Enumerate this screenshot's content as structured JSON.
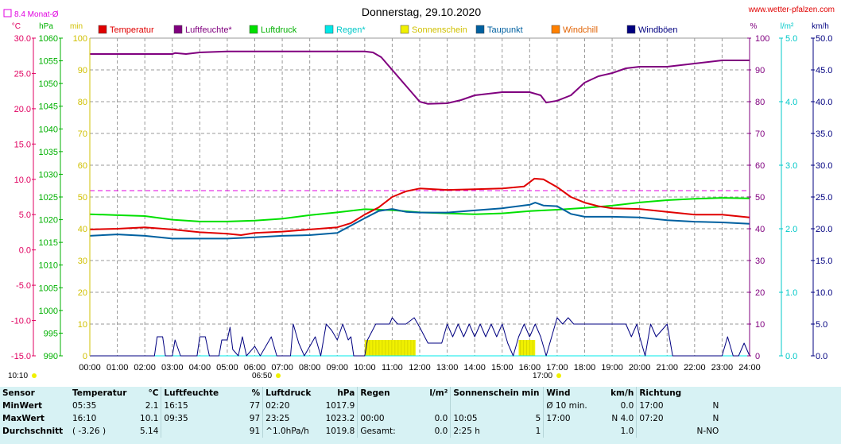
{
  "header": {
    "title": "Donnerstag, 29.10.2020",
    "site": "www.wetter-pfalzen.com",
    "month_avg_label": "8.4 Monat-Ø"
  },
  "axis_units": {
    "temp": "°C",
    "pressure": "hPa",
    "sun": "min",
    "humidity": "%",
    "rain": "l/m²",
    "wind": "km/h"
  },
  "legend": [
    {
      "name": "Temperatur",
      "color": "#e00000",
      "text_color": "#e00000"
    },
    {
      "name": "Luftfeuchte*",
      "color": "#80007f",
      "text_color": "#80007f"
    },
    {
      "name": "Luftdruck",
      "color": "#00e000",
      "text_color": "#00b000"
    },
    {
      "name": "Regen*",
      "color": "#00e8e8",
      "text_color": "#00c8c8"
    },
    {
      "name": "Sonnenschein",
      "color": "#f0f000",
      "text_color": "#d0c000"
    },
    {
      "name": "Taupunkt",
      "color": "#0060a0",
      "text_color": "#0060a0"
    },
    {
      "name": "Windchill",
      "color": "#ff8000",
      "text_color": "#e06000"
    },
    {
      "name": "Windböen",
      "color": "#000080",
      "text_color": "#000080"
    }
  ],
  "x_marks": {
    "time_start": "10:10",
    "sunrise": "06:50",
    "sunset": "17:00"
  },
  "chart_data": {
    "type": "line",
    "title": "Donnerstag, 29.10.2020",
    "x_unit": "hours",
    "xlim": [
      0,
      24
    ],
    "x_ticks": [
      "00:00",
      "01:00",
      "02:00",
      "03:00",
      "04:00",
      "05:00",
      "06:00",
      "07:00",
      "08:00",
      "09:00",
      "10:00",
      "11:00",
      "12:00",
      "13:00",
      "14:00",
      "15:00",
      "16:00",
      "17:00",
      "18:00",
      "19:00",
      "20:00",
      "21:00",
      "22:00",
      "23:00",
      "24:00"
    ],
    "axes": {
      "temp": {
        "label": "°C",
        "lim": [
          -15,
          30
        ],
        "ticks": [
          "30.0",
          "25.0",
          "20.0",
          "15.0",
          "10.0",
          "5.0",
          "0.0",
          "-5.0",
          "-10.0",
          "-15.0"
        ]
      },
      "pressure": {
        "label": "hPa",
        "lim": [
          990,
          1060
        ],
        "ticks": [
          "1060",
          "1055",
          "1050",
          "1045",
          "1040",
          "1035",
          "1030",
          "1025",
          "1020",
          "1015",
          "1010",
          "1005",
          "1000",
          "995",
          "990"
        ]
      },
      "sun": {
        "label": "min",
        "lim": [
          0,
          100
        ],
        "ticks": [
          "100",
          "90",
          "80",
          "70",
          "60",
          "50",
          "40",
          "30",
          "20",
          "10",
          "0"
        ]
      },
      "humidity": {
        "label": "%",
        "lim": [
          0,
          100
        ],
        "ticks": [
          "100",
          "90",
          "80",
          "70",
          "60",
          "50",
          "40",
          "30",
          "20",
          "10",
          "0"
        ]
      },
      "rain": {
        "label": "l/m²",
        "lim": [
          0,
          5
        ],
        "ticks": [
          "5.0",
          "4.0",
          "3.0",
          "2.0",
          "1.0",
          "0.0"
        ]
      },
      "wind": {
        "label": "km/h",
        "lim": [
          0,
          50
        ],
        "ticks": [
          "50.0",
          "45.0",
          "40.0",
          "35.0",
          "30.0",
          "25.0",
          "20.0",
          "15.0",
          "10.0",
          "5.0",
          "0.0"
        ]
      }
    },
    "month_avg_temp": 8.4,
    "series": [
      {
        "name": "Luftfeuchte*",
        "axis": "humidity",
        "color": "#80007f",
        "points": [
          [
            0,
            95
          ],
          [
            3,
            95
          ],
          [
            3.1,
            95.3
          ],
          [
            3.5,
            95
          ],
          [
            4,
            95.5
          ],
          [
            5,
            95.8
          ],
          [
            6,
            95.8
          ],
          [
            7,
            95.8
          ],
          [
            8,
            95.8
          ],
          [
            9,
            95.8
          ],
          [
            10,
            95.8
          ],
          [
            10.3,
            95.5
          ],
          [
            10.6,
            94
          ],
          [
            11,
            90
          ],
          [
            11.5,
            85
          ],
          [
            12,
            80
          ],
          [
            12.3,
            79.3
          ],
          [
            13,
            79.5
          ],
          [
            13.5,
            80.5
          ],
          [
            14,
            82
          ],
          [
            15,
            83
          ],
          [
            16,
            83
          ],
          [
            16.4,
            82
          ],
          [
            16.6,
            79.7
          ],
          [
            17,
            80.3
          ],
          [
            17.5,
            82
          ],
          [
            18,
            86
          ],
          [
            18.5,
            88
          ],
          [
            19,
            89
          ],
          [
            19.5,
            90.5
          ],
          [
            20,
            91
          ],
          [
            21,
            91
          ],
          [
            21.5,
            91.5
          ],
          [
            22,
            92
          ],
          [
            22.5,
            92.5
          ],
          [
            23,
            93
          ],
          [
            24,
            93
          ]
        ]
      },
      {
        "name": "Temperatur",
        "axis": "temp",
        "color": "#e00000",
        "points": [
          [
            0,
            2.9
          ],
          [
            1,
            3.0
          ],
          [
            2,
            3.2
          ],
          [
            3,
            2.9
          ],
          [
            4,
            2.5
          ],
          [
            5,
            2.3
          ],
          [
            5.5,
            2.1
          ],
          [
            6,
            2.4
          ],
          [
            7,
            2.6
          ],
          [
            8,
            2.9
          ],
          [
            9,
            3.2
          ],
          [
            9.5,
            3.8
          ],
          [
            10,
            5.0
          ],
          [
            10.5,
            6.0
          ],
          [
            11,
            7.5
          ],
          [
            11.5,
            8.3
          ],
          [
            12,
            8.7
          ],
          [
            13,
            8.5
          ],
          [
            14,
            8.6
          ],
          [
            15,
            8.7
          ],
          [
            15.8,
            9.0
          ],
          [
            16.17,
            10.1
          ],
          [
            16.5,
            10.0
          ],
          [
            17,
            8.9
          ],
          [
            17.5,
            7.5
          ],
          [
            18,
            6.7
          ],
          [
            18.5,
            6.2
          ],
          [
            19,
            5.9
          ],
          [
            20,
            5.8
          ],
          [
            21,
            5.4
          ],
          [
            22,
            5.0
          ],
          [
            23,
            5.0
          ],
          [
            24,
            4.6
          ]
        ]
      },
      {
        "name": "Luftdruck",
        "axis": "pressure",
        "color": "#00e000",
        "points": [
          [
            0,
            1021.2
          ],
          [
            1,
            1021.0
          ],
          [
            2,
            1020.8
          ],
          [
            3,
            1020.0
          ],
          [
            4,
            1019.6
          ],
          [
            5,
            1019.6
          ],
          [
            6,
            1019.8
          ],
          [
            7,
            1020.2
          ],
          [
            8,
            1021.0
          ],
          [
            9,
            1021.6
          ],
          [
            10,
            1022.3
          ],
          [
            11,
            1022.1
          ],
          [
            12,
            1021.6
          ],
          [
            13,
            1021.4
          ],
          [
            14,
            1021.2
          ],
          [
            15,
            1021.4
          ],
          [
            16,
            1021.9
          ],
          [
            17,
            1022.2
          ],
          [
            18,
            1022.6
          ],
          [
            19,
            1023.1
          ],
          [
            20,
            1023.8
          ],
          [
            21,
            1024.3
          ],
          [
            22,
            1024.6
          ],
          [
            23,
            1024.8
          ],
          [
            24,
            1024.7
          ]
        ]
      },
      {
        "name": "Taupunkt",
        "axis": "temp",
        "color": "#0060a0",
        "points": [
          [
            0,
            2.0
          ],
          [
            1,
            2.2
          ],
          [
            2,
            2.0
          ],
          [
            3,
            1.6
          ],
          [
            4,
            1.6
          ],
          [
            5,
            1.6
          ],
          [
            6,
            1.8
          ],
          [
            7,
            2.0
          ],
          [
            8,
            2.1
          ],
          [
            9,
            2.4
          ],
          [
            10,
            4.5
          ],
          [
            10.5,
            5.5
          ],
          [
            11,
            5.8
          ],
          [
            11.5,
            5.4
          ],
          [
            12,
            5.3
          ],
          [
            13,
            5.3
          ],
          [
            14,
            5.6
          ],
          [
            15,
            5.9
          ],
          [
            16,
            6.4
          ],
          [
            16.2,
            6.7
          ],
          [
            16.5,
            6.3
          ],
          [
            17,
            6.2
          ],
          [
            17.5,
            5.1
          ],
          [
            18,
            4.7
          ],
          [
            19,
            4.7
          ],
          [
            20,
            4.6
          ],
          [
            21,
            4.2
          ],
          [
            22,
            4.0
          ],
          [
            23,
            3.9
          ],
          [
            24,
            3.7
          ]
        ]
      },
      {
        "name": "Regen*",
        "axis": "rain",
        "color": "#00e8e8",
        "points": [
          [
            0,
            0
          ],
          [
            24,
            0
          ]
        ]
      },
      {
        "name": "Windböen",
        "axis": "wind",
        "color": "#000080",
        "points": [
          [
            0,
            0
          ],
          [
            2.35,
            0
          ],
          [
            2.45,
            3
          ],
          [
            2.65,
            3
          ],
          [
            2.75,
            0
          ],
          [
            3.0,
            0
          ],
          [
            3.1,
            2.5
          ],
          [
            3.3,
            0
          ],
          [
            3.9,
            0
          ],
          [
            4.0,
            3
          ],
          [
            4.2,
            3
          ],
          [
            4.35,
            0
          ],
          [
            4.7,
            0
          ],
          [
            4.8,
            2.5
          ],
          [
            5.0,
            2.5
          ],
          [
            5.1,
            4.5
          ],
          [
            5.2,
            1
          ],
          [
            5.4,
            0
          ],
          [
            5.55,
            3
          ],
          [
            5.7,
            0
          ],
          [
            6.0,
            1.5
          ],
          [
            6.2,
            0
          ],
          [
            6.6,
            3
          ],
          [
            6.8,
            0
          ],
          [
            7.0,
            0
          ],
          [
            7.3,
            0
          ],
          [
            7.4,
            5
          ],
          [
            7.6,
            2
          ],
          [
            7.8,
            0
          ],
          [
            8.2,
            3
          ],
          [
            8.4,
            0
          ],
          [
            8.6,
            5
          ],
          [
            8.8,
            4
          ],
          [
            9.0,
            2.5
          ],
          [
            9.2,
            5
          ],
          [
            9.4,
            2.5
          ],
          [
            9.5,
            3
          ],
          [
            9.6,
            0
          ],
          [
            10.0,
            0
          ],
          [
            10.1,
            2.5
          ],
          [
            10.4,
            5
          ],
          [
            10.7,
            5
          ],
          [
            10.9,
            5
          ],
          [
            11.0,
            6
          ],
          [
            11.2,
            5
          ],
          [
            11.5,
            5
          ],
          [
            11.8,
            6
          ],
          [
            12.0,
            4.5
          ],
          [
            12.3,
            2
          ],
          [
            12.5,
            2
          ],
          [
            12.8,
            2
          ],
          [
            13.0,
            5
          ],
          [
            13.2,
            3
          ],
          [
            13.4,
            5
          ],
          [
            13.6,
            3
          ],
          [
            13.8,
            5
          ],
          [
            14.0,
            3
          ],
          [
            14.2,
            5
          ],
          [
            14.4,
            3
          ],
          [
            14.6,
            5
          ],
          [
            14.8,
            3
          ],
          [
            15.0,
            5
          ],
          [
            15.2,
            2
          ],
          [
            15.4,
            0
          ],
          [
            15.6,
            3
          ],
          [
            15.8,
            5
          ],
          [
            16.0,
            3
          ],
          [
            16.2,
            5
          ],
          [
            16.4,
            3
          ],
          [
            16.6,
            0
          ],
          [
            16.8,
            3
          ],
          [
            17.0,
            6
          ],
          [
            17.2,
            5
          ],
          [
            17.4,
            6
          ],
          [
            17.6,
            5
          ],
          [
            17.8,
            5
          ],
          [
            18.0,
            5
          ],
          [
            18.5,
            5
          ],
          [
            19.0,
            5
          ],
          [
            19.5,
            5
          ],
          [
            19.7,
            3
          ],
          [
            19.9,
            5
          ],
          [
            20.0,
            3
          ],
          [
            20.2,
            0
          ],
          [
            20.4,
            5
          ],
          [
            20.6,
            3
          ],
          [
            21.0,
            5
          ],
          [
            21.2,
            0
          ],
          [
            21.4,
            0
          ],
          [
            21.7,
            0
          ],
          [
            22.0,
            0
          ],
          [
            23.0,
            0
          ],
          [
            23.2,
            3
          ],
          [
            23.4,
            0
          ],
          [
            23.6,
            0
          ],
          [
            23.8,
            2
          ],
          [
            24,
            0
          ]
        ]
      }
    ],
    "sunshine_bars": [
      {
        "from": 10.0,
        "to": 11.85,
        "value": 5
      },
      {
        "from": 15.6,
        "to": 16.2,
        "value": 5
      }
    ],
    "annotations": [
      "10:10",
      "06:50",
      "17:00"
    ]
  },
  "stats": {
    "headers": {
      "sensor": "Sensor",
      "temp": "Temperatur",
      "temp_unit": "°C",
      "hum": "Luftfeuchte",
      "hum_unit": "%",
      "press": "Luftdruck",
      "press_unit": "hPa",
      "rain": "Regen",
      "rain_unit": "l/m²",
      "sun": "Sonnenschein min",
      "wind": "Wind",
      "wind_unit": "km/h",
      "dir": "Richtung"
    },
    "rows": [
      {
        "label": "MinWert",
        "temp_t": "05:35",
        "temp_v": "2.1",
        "hum_t": "16:15",
        "hum_v": "77",
        "press_t": "02:20",
        "press_v": "1017.9",
        "rain_t": "",
        "rain_v": "",
        "sun_t": "",
        "sun_v": "",
        "wind_t": "Ø 10 min.",
        "wind_v": "0.0",
        "dir_t": "17:00",
        "dir_v": "N"
      },
      {
        "label": "MaxWert",
        "temp_t": "16:10",
        "temp_v": "10.1",
        "hum_t": "09:35",
        "hum_v": "97",
        "press_t": "23:25",
        "press_v": "1023.2",
        "rain_t": "00:00",
        "rain_v": "0.0",
        "sun_t": "10:05",
        "sun_v": "5",
        "wind_t": "17:00",
        "wind_v": "N 4.0",
        "dir_t": "07:20",
        "dir_v": "N"
      },
      {
        "label": "Durchschnitt",
        "temp_t": "( -3.26 )",
        "temp_v": "5.14",
        "hum_t": "",
        "hum_v": "91",
        "press_t": "^1.0hPa/h",
        "press_v": "1019.8",
        "rain_t": "Gesamt:",
        "rain_v": "0.0",
        "sun_t": "2:25 h",
        "sun_v": "1",
        "wind_t": "",
        "wind_v": "1.0",
        "dir_t": "",
        "dir_v": "N-NO"
      }
    ]
  }
}
